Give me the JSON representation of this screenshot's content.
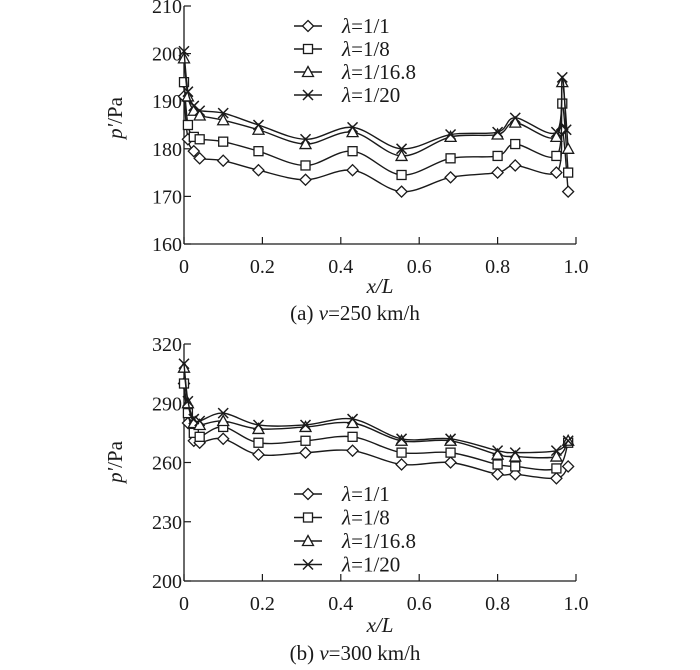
{
  "chart_data": [
    {
      "type": "line",
      "panel_label": "(a)",
      "caption": {
        "prefix": "(a) ",
        "var": "v",
        "rest": "=250 km/h"
      },
      "xlabel": "x/L",
      "ylabel": "p'/Pa",
      "xlim": [
        0,
        1.0
      ],
      "ylim": [
        160,
        210
      ],
      "xticks": [
        "0",
        "0.2",
        "0.4",
        "0.6",
        "0.8",
        "1.0"
      ],
      "yticks": [
        "160",
        "170",
        "180",
        "190",
        "200",
        "210"
      ],
      "legend_position": "top-center",
      "grid": false,
      "series": [
        {
          "name": "λ=1/1",
          "marker": "diamond",
          "x": [
            0.0,
            0.01,
            0.025,
            0.04,
            0.1,
            0.19,
            0.31,
            0.43,
            0.555,
            0.68,
            0.8,
            0.845,
            0.95,
            0.965,
            0.98
          ],
          "y": [
            191,
            182,
            179.5,
            178,
            177.5,
            175.5,
            173.5,
            175.5,
            171,
            174,
            175,
            176.5,
            175,
            184,
            171
          ]
        },
        {
          "name": "λ=1/8",
          "marker": "square",
          "x": [
            0.0,
            0.01,
            0.025,
            0.04,
            0.1,
            0.19,
            0.31,
            0.43,
            0.555,
            0.68,
            0.8,
            0.845,
            0.95,
            0.965,
            0.98
          ],
          "y": [
            194,
            185,
            182.5,
            182,
            181.5,
            179.5,
            176.5,
            179.5,
            174.5,
            178,
            178.5,
            181,
            178.5,
            189.5,
            175
          ]
        },
        {
          "name": "λ=1/16.8",
          "marker": "triangle",
          "x": [
            0.0,
            0.01,
            0.025,
            0.04,
            0.1,
            0.19,
            0.31,
            0.43,
            0.555,
            0.68,
            0.8,
            0.845,
            0.95,
            0.965,
            0.98
          ],
          "y": [
            199,
            191,
            188,
            187,
            186,
            184,
            181,
            183.5,
            178.5,
            182.5,
            183,
            185.5,
            182.5,
            194,
            180
          ]
        },
        {
          "name": "λ=1/20",
          "marker": "cross",
          "x": [
            0.0,
            0.01,
            0.025,
            0.04,
            0.1,
            0.19,
            0.31,
            0.43,
            0.555,
            0.68,
            0.8,
            0.845,
            0.95,
            0.965,
            0.975
          ],
          "y": [
            200.5,
            192,
            189,
            188,
            187.5,
            185,
            182,
            184.5,
            180,
            183,
            183.5,
            186.5,
            183.5,
            195,
            184
          ]
        }
      ]
    },
    {
      "type": "line",
      "panel_label": "(b)",
      "caption": {
        "prefix": "(b) ",
        "var": "v",
        "rest": "=300 km/h"
      },
      "xlabel": "x/L",
      "ylabel": "p'/Pa",
      "xlim": [
        0,
        1.0
      ],
      "ylim": [
        200,
        320
      ],
      "xticks": [
        "0",
        "0.2",
        "0.4",
        "0.6",
        "0.8",
        "1.0"
      ],
      "yticks": [
        "200",
        "230",
        "260",
        "290",
        "320"
      ],
      "legend_position": "bottom-center",
      "grid": false,
      "series": [
        {
          "name": "λ=1/1",
          "marker": "diamond",
          "x": [
            0.0,
            0.01,
            0.025,
            0.04,
            0.1,
            0.19,
            0.31,
            0.43,
            0.555,
            0.68,
            0.8,
            0.845,
            0.95,
            0.98
          ],
          "y": [
            300,
            280,
            271,
            270,
            272,
            264,
            265,
            266,
            259,
            260,
            254,
            254,
            252,
            258
          ]
        },
        {
          "name": "λ=1/8",
          "marker": "square",
          "x": [
            0.0,
            0.01,
            0.025,
            0.04,
            0.1,
            0.19,
            0.31,
            0.43,
            0.555,
            0.68,
            0.8,
            0.845,
            0.95,
            0.98
          ],
          "y": [
            300,
            285,
            275,
            273,
            278,
            270,
            271,
            273,
            265,
            265,
            259,
            258,
            257,
            270
          ]
        },
        {
          "name": "λ=1/16.8",
          "marker": "triangle",
          "x": [
            0.0,
            0.01,
            0.025,
            0.04,
            0.1,
            0.19,
            0.31,
            0.43,
            0.555,
            0.68,
            0.8,
            0.845,
            0.95,
            0.98
          ],
          "y": [
            308,
            290,
            280,
            279,
            281,
            277,
            278,
            280,
            271,
            271,
            264,
            263,
            263,
            271
          ]
        },
        {
          "name": "λ=1/20",
          "marker": "cross",
          "x": [
            0.0,
            0.01,
            0.025,
            0.04,
            0.1,
            0.19,
            0.31,
            0.43,
            0.555,
            0.68,
            0.8,
            0.845,
            0.95,
            0.98
          ],
          "y": [
            310,
            291,
            282,
            281,
            285,
            279,
            279,
            282,
            272,
            272,
            266,
            265,
            266,
            271
          ]
        }
      ]
    }
  ]
}
